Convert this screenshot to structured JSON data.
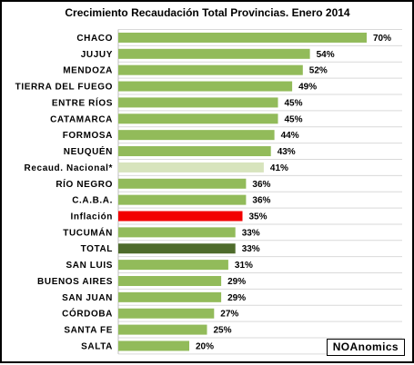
{
  "chart_data": {
    "type": "bar",
    "orientation": "horizontal",
    "title": "Crecimiento Recaudación  Total Provincias.  Enero 2014",
    "categories": [
      "CHACO",
      "JUJUY",
      "MENDOZA",
      "TIERRA DEL FUEGO",
      "ENTRE RÍOS",
      "CATAMARCA",
      "FORMOSA",
      "NEUQUÉN",
      "Recaud. Nacional*",
      "RÍO NEGRO",
      "C.A.B.A.",
      "Inflación",
      "TUCUMÁN",
      "TOTAL",
      "SAN LUIS",
      "BUENOS AIRES",
      "SAN JUAN",
      "CÓRDOBA",
      "SANTA FE",
      "SALTA"
    ],
    "values": [
      70,
      54,
      52,
      49,
      45,
      45,
      44,
      43,
      41,
      36,
      36,
      35,
      33,
      33,
      31,
      29,
      29,
      27,
      25,
      20
    ],
    "value_labels": [
      "70%",
      "54%",
      "52%",
      "49%",
      "45%",
      "45%",
      "44%",
      "43%",
      "41%",
      "36%",
      "36%",
      "35%",
      "33%",
      "33%",
      "31%",
      "29%",
      "29%",
      "27%",
      "25%",
      "20%"
    ],
    "colors": {
      "default": "#92BB5A",
      "Recaud. Nacional*": "#D7E4BD",
      "Inflación": "#F20000",
      "TOTAL": "#4E6B2B"
    },
    "xlim": [
      0,
      70
    ],
    "grid": true,
    "legend": "none"
  },
  "watermark": "NOAnomics"
}
